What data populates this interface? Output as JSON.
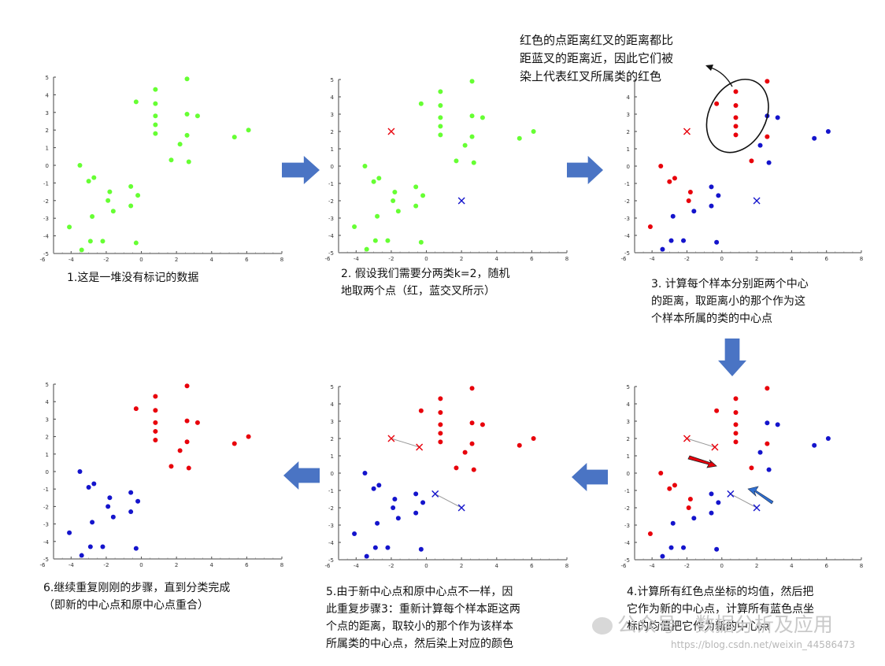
{
  "annotation": {
    "lines": [
      "红色的点距离红叉的距离都比",
      "距蓝叉的距离近，因此它们被",
      "染上代表红叉所属类的红色"
    ]
  },
  "colors": {
    "green": "#66ff33",
    "red": "#e8000b",
    "blue": "#1414cc",
    "flow_arrow": "#4a74c4",
    "axis": "#444444"
  },
  "axes": {
    "xlim": [
      -5,
      8
    ],
    "ylim": [
      -5,
      5
    ],
    "xticks": [
      -6,
      -4,
      -2,
      0,
      2,
      4,
      6,
      8
    ],
    "xtick_labels": [
      "-6",
      "-4",
      "-2",
      "0",
      "2",
      "4",
      "6",
      "8"
    ],
    "yticks": [
      5,
      4,
      3,
      2,
      1,
      0,
      -1,
      -2,
      -3,
      -4,
      -5
    ],
    "ytick_labels": [
      "5",
      "4",
      "3",
      "2",
      "1",
      "0",
      "-1",
      "-2",
      "-3",
      "-4",
      "-5"
    ]
  },
  "cluster_a": [
    [
      2.6,
      4.9
    ],
    [
      0.8,
      4.3
    ],
    [
      -0.3,
      3.6
    ],
    [
      0.8,
      3.5
    ],
    [
      0.8,
      2.8
    ],
    [
      2.6,
      2.9
    ],
    [
      3.2,
      2.8
    ],
    [
      0.8,
      2.3
    ],
    [
      2.6,
      1.7
    ],
    [
      0.8,
      1.8
    ],
    [
      6.1,
      2.0
    ],
    [
      5.3,
      1.6
    ],
    [
      2.2,
      1.2
    ],
    [
      1.7,
      0.3
    ],
    [
      2.7,
      0.2
    ]
  ],
  "cluster_b": [
    [
      -3.5,
      0.0
    ],
    [
      -2.7,
      -0.7
    ],
    [
      -3.0,
      -0.9
    ],
    [
      -0.6,
      -1.2
    ],
    [
      -1.8,
      -1.5
    ],
    [
      -0.2,
      -1.7
    ],
    [
      -1.9,
      -2.0
    ],
    [
      -0.6,
      -2.3
    ],
    [
      -1.6,
      -2.6
    ],
    [
      -2.8,
      -2.9
    ],
    [
      -4.1,
      -3.5
    ],
    [
      -2.9,
      -4.3
    ],
    [
      -2.2,
      -4.3
    ],
    [
      -0.3,
      -4.4
    ],
    [
      -3.4,
      -4.8
    ]
  ],
  "panels": [
    {
      "caption": [
        "1.这是一堆没有标记的数据"
      ],
      "a_color": "green",
      "b_color": "green",
      "red_center": null,
      "blue_center": null,
      "red_prev": null,
      "blue_prev": null,
      "ellipse": false
    },
    {
      "caption": [
        "2. 假设我们需要分两类k=2，随机",
        "地取两个点（红，蓝交叉所示）"
      ],
      "a_color": "green",
      "b_color": "green",
      "red_center": [
        -2,
        2
      ],
      "blue_center": [
        2,
        -2
      ],
      "red_prev": null,
      "blue_prev": null,
      "ellipse": false
    },
    {
      "caption": [
        "3. 计算每个样本分别距两个中心",
        "的距离，取距离小的那个作为这",
        "个样本所属的类的中心点"
      ],
      "a_color": "mixed",
      "b_color": "mixed",
      "red_center": [
        -2,
        2
      ],
      "blue_center": [
        2,
        -2
      ],
      "red_prev": null,
      "blue_prev": null,
      "ellipse": true
    },
    {
      "caption": [
        "4.计算所有红色点坐标的均值，然后把",
        "它作为新的中心点，计算所有蓝色点坐",
        "标的均值把它作为新的中心点"
      ],
      "a_color": "mixed",
      "b_color": "mixed",
      "red_center": [
        -0.4,
        1.5
      ],
      "blue_center": [
        0.5,
        -1.2
      ],
      "red_prev": [
        -2,
        2
      ],
      "blue_prev": [
        2,
        -2
      ],
      "ellipse": false
    },
    {
      "caption": [
        "5.由于新中心点和原中心点不一样，因",
        "此重复步骤3：重新计算每个样本距这两",
        "个点的距离，取较小的那个作为该样本",
        "所属类的中心点，然后染上对应的颜色"
      ],
      "a_color": "red",
      "b_color": "blue",
      "red_center": [
        -0.4,
        1.5
      ],
      "blue_center": [
        0.5,
        -1.2
      ],
      "red_prev": [
        -2,
        2
      ],
      "blue_prev": [
        2,
        -2
      ],
      "ellipse": false
    },
    {
      "caption": [
        "6.继续重复刚刚的步骤，直到分类完成",
        "（即新的中心点和原中心点重合）"
      ],
      "a_color": "red",
      "b_color": "blue",
      "red_center": null,
      "blue_center": null,
      "red_prev": null,
      "blue_prev": null,
      "ellipse": false
    }
  ],
  "step3_blue_in_a": [
    5,
    6,
    10,
    11,
    12,
    14
  ],
  "step3_red_in_b": [
    0,
    1,
    2,
    4,
    6,
    10
  ],
  "watermark": {
    "text1": "公众号 · 数据分析及应用",
    "text2": "https://blog.csdn.net/weixin_44586473"
  }
}
